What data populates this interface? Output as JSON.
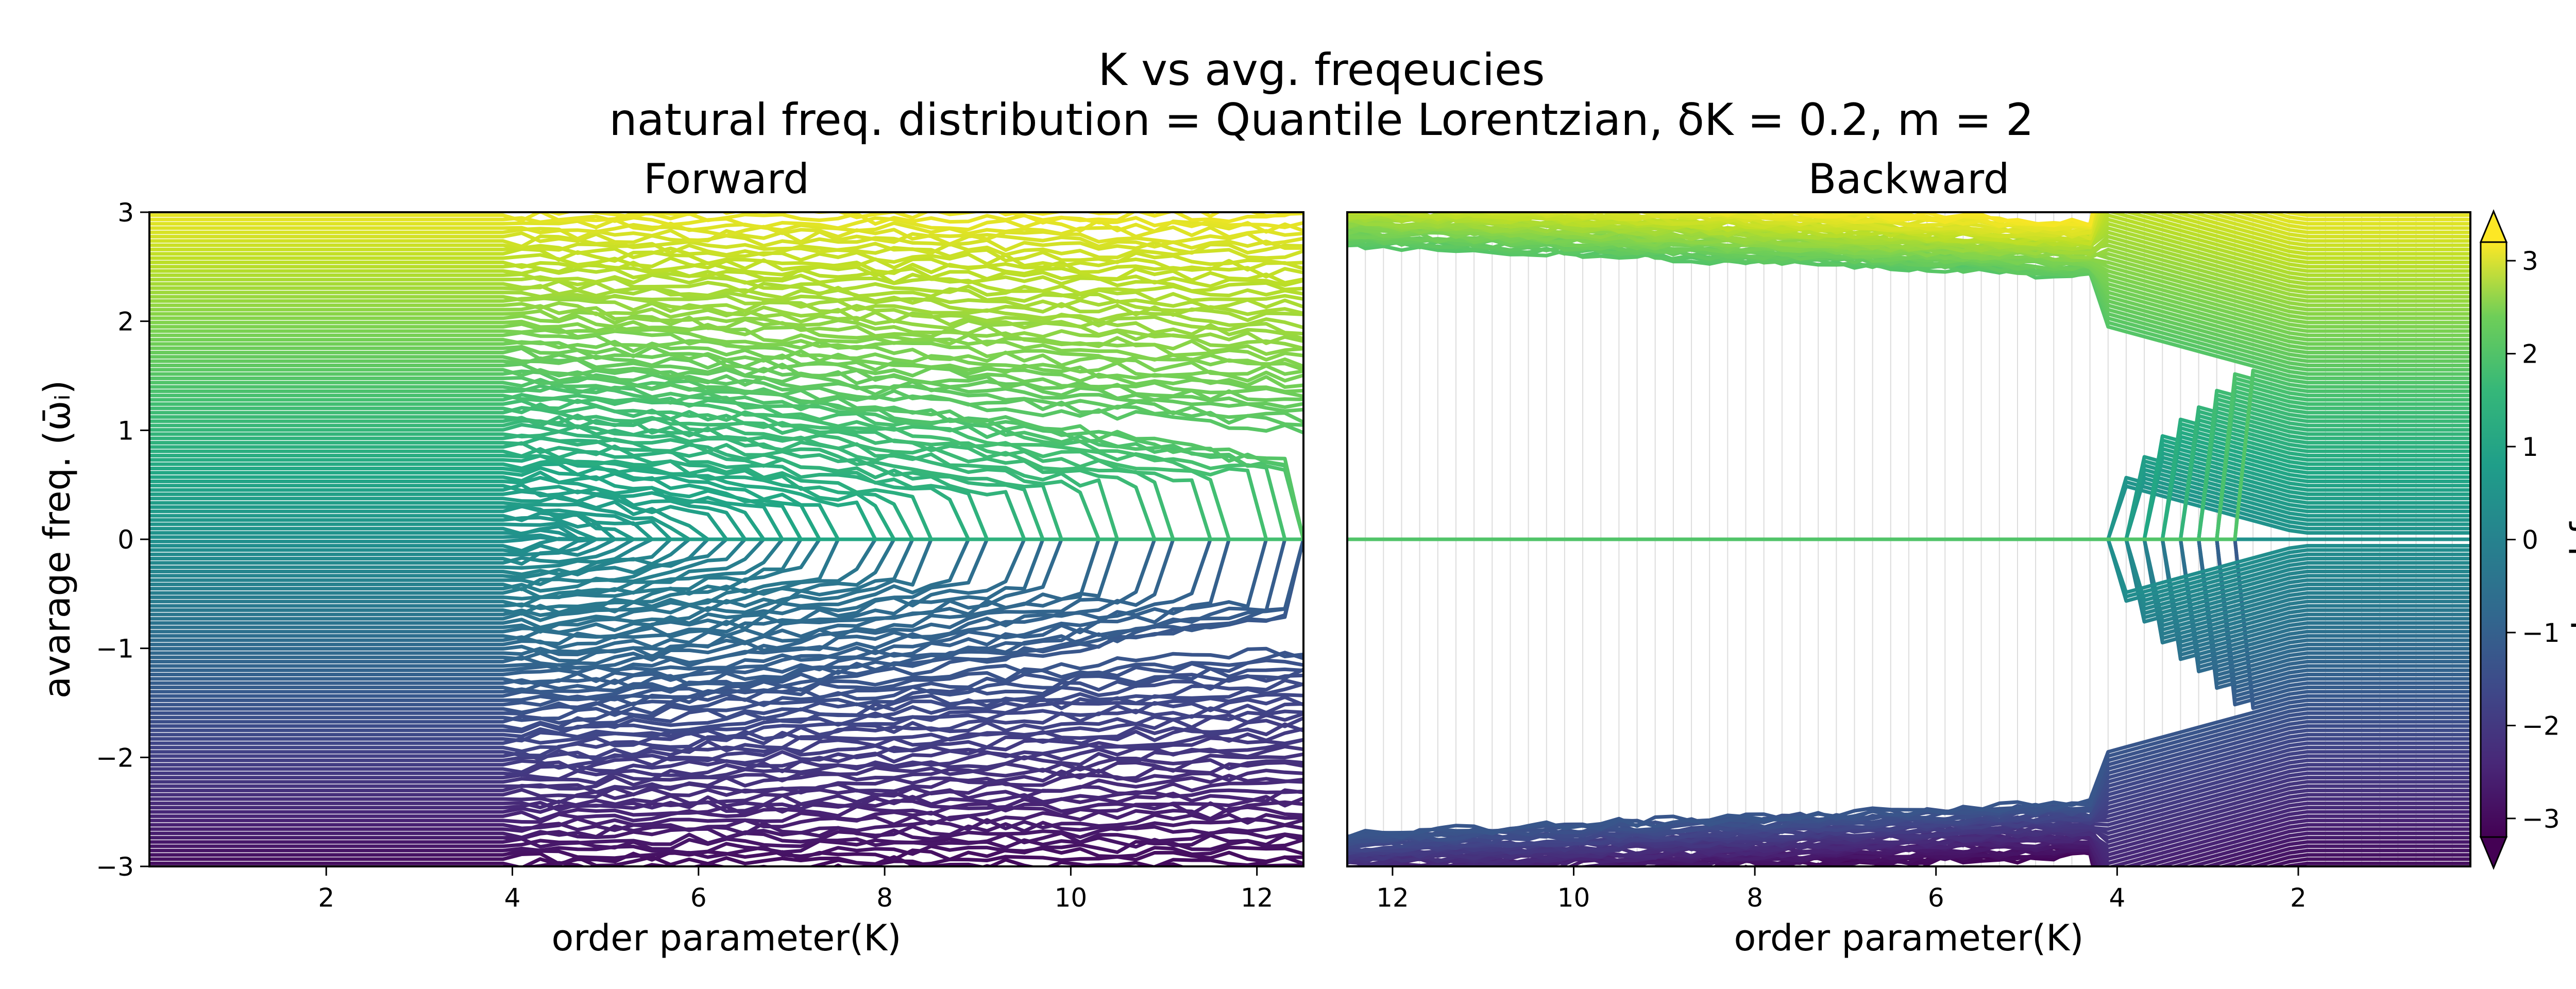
{
  "figure": {
    "title": "K vs avg. freqeucies",
    "subtitle": "natural freq. distribution = Quantile Lorentzian, δK = 0.2, m = 2"
  },
  "chart_data": [
    {
      "type": "line",
      "panel": "Forward",
      "title": "Forward",
      "xlabel": "order parameter(K)",
      "ylabel": "avarage freq. (ω̄ᵢ)",
      "xlim": [
        0.1,
        12.5
      ],
      "ylim": [
        -3,
        3
      ],
      "x_direction": "increasing",
      "x_ticks": [
        2,
        4,
        6,
        8,
        10,
        12
      ],
      "x_tick_labels": [
        "2",
        "4",
        "6",
        "8",
        "10",
        "12"
      ],
      "y_ticks": [
        -3,
        -2,
        -1,
        0,
        1,
        2,
        3
      ],
      "y_tick_labels": [
        "−3",
        "−2",
        "−1",
        "0",
        "1",
        "2",
        "3"
      ],
      "K_step": 0.2,
      "series_description": "one line per oscillator, colored by natural frequency (viridis)",
      "lock_onset_K": 4.5,
      "full_lock_K": 12.5,
      "grid": false
    },
    {
      "type": "line",
      "panel": "Backward",
      "title": "Backward",
      "xlabel": "order parameter(K)",
      "ylabel": "",
      "xlim": [
        12.5,
        0.1
      ],
      "ylim": [
        -3,
        3
      ],
      "x_direction": "decreasing",
      "x_ticks": [
        12,
        10,
        8,
        6,
        4,
        2
      ],
      "x_tick_labels": [
        "12",
        "10",
        "8",
        "6",
        "4",
        "2"
      ],
      "K_step": 0.2,
      "series_description": "one line per oscillator, colored by natural frequency (viridis)",
      "unlock_start_K": 4.0,
      "unlock_end_K": 2.6,
      "grid": true
    }
  ],
  "colorbar": {
    "label": "natural freq. ωᵢ",
    "colormap": "viridis",
    "range": [
      -3.2,
      3.2
    ],
    "ticks": [
      -3,
      -2,
      -1,
      0,
      1,
      2,
      3
    ],
    "tick_labels": [
      "−3",
      "−2",
      "−1",
      "0",
      "1",
      "2",
      "3"
    ],
    "extend": "both"
  }
}
